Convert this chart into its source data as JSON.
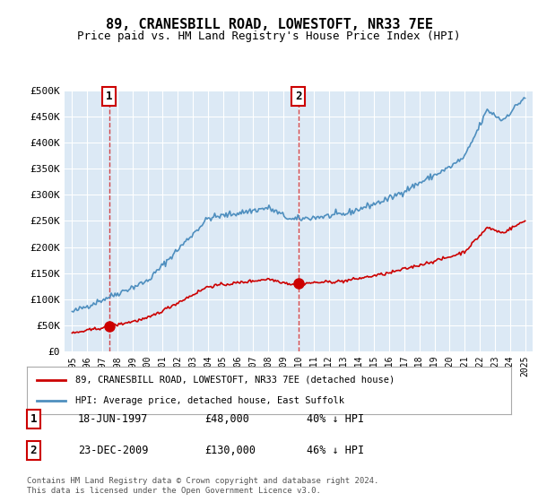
{
  "title": "89, CRANESBILL ROAD, LOWESTOFT, NR33 7EE",
  "subtitle": "Price paid vs. HM Land Registry's House Price Index (HPI)",
  "background_color": "#dce9f5",
  "plot_bg_color": "#dce9f5",
  "ylim": [
    0,
    500000
  ],
  "yticks": [
    0,
    50000,
    100000,
    150000,
    200000,
    250000,
    300000,
    350000,
    400000,
    450000,
    500000
  ],
  "ytick_labels": [
    "£0",
    "£50K",
    "£100K",
    "£150K",
    "£200K",
    "£250K",
    "£300K",
    "£350K",
    "£400K",
    "£450K",
    "£500K"
  ],
  "xlim_start": 1994.5,
  "xlim_end": 2025.5,
  "xticks": [
    1995,
    1996,
    1997,
    1998,
    1999,
    2000,
    2001,
    2002,
    2003,
    2004,
    2005,
    2006,
    2007,
    2008,
    2009,
    2010,
    2011,
    2012,
    2013,
    2014,
    2015,
    2016,
    2017,
    2018,
    2019,
    2020,
    2021,
    2022,
    2023,
    2024,
    2025
  ],
  "sale1_x": 1997.463,
  "sale1_y": 48000,
  "sale1_label": "1",
  "sale1_date": "18-JUN-1997",
  "sale1_price": "£48,000",
  "sale1_hpi": "40% ↓ HPI",
  "sale2_x": 2009.978,
  "sale2_y": 130000,
  "sale2_label": "2",
  "sale2_date": "23-DEC-2009",
  "sale2_price": "£130,000",
  "sale2_hpi": "46% ↓ HPI",
  "red_line_color": "#cc0000",
  "blue_line_color": "#4f8fbf",
  "dashed_line_color": "#cc0000",
  "legend_house_label": "89, CRANESBILL ROAD, LOWESTOFT, NR33 7EE (detached house)",
  "legend_hpi_label": "HPI: Average price, detached house, East Suffolk",
  "footer_text": "Contains HM Land Registry data © Crown copyright and database right 2024.\nThis data is licensed under the Open Government Licence v3.0."
}
